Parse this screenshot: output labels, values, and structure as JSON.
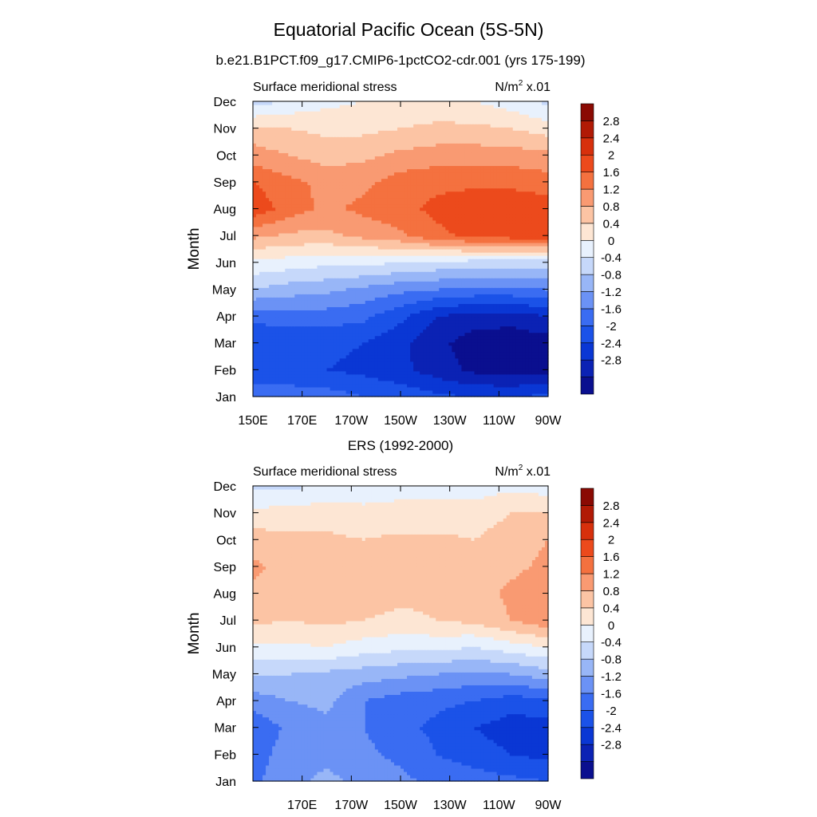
{
  "title": "Equatorial Pacific Ocean (5S-5N)",
  "colors": {
    "levels": [
      -2.8,
      -2.4,
      -2.0,
      -1.6,
      -1.2,
      -0.8,
      -0.4,
      0.0,
      0.4,
      0.8,
      1.2,
      1.6,
      2.0,
      2.4,
      2.8
    ],
    "palette": [
      "#0a0f8f",
      "#0b22b4",
      "#0a37d4",
      "#1b52e8",
      "#3a6cf2",
      "#6b92f5",
      "#98b6f7",
      "#c6d8fa",
      "#e8f1fd",
      "#fde6d4",
      "#fcc4a4",
      "#f99a72",
      "#f4713f",
      "#ec4a1c",
      "#d7300c",
      "#b11a05",
      "#8a0a03"
    ]
  },
  "chart_data": [
    {
      "type": "heatmap",
      "subtitle": "b.e21.B1PCT.f09_g17.CMIP6-1pctCO2-cdr.001 (yrs 175-199)",
      "left_label": "Surface meridional stress",
      "units_prefix": "N/m",
      "units_sup": "2",
      "units_suffix": " x.01",
      "ylabel": "Month",
      "xlabel": "",
      "xlim": [
        150,
        270
      ],
      "x_ticks": [
        {
          "value": 150,
          "label": "150E"
        },
        {
          "value": 170,
          "label": "170E"
        },
        {
          "value": 190,
          "label": "170W"
        },
        {
          "value": 210,
          "label": "150W"
        },
        {
          "value": 230,
          "label": "130W"
        },
        {
          "value": 250,
          "label": "110W"
        },
        {
          "value": 270,
          "label": "90W"
        }
      ],
      "y_ticks": [
        "Jan",
        "Feb",
        "Mar",
        "Apr",
        "May",
        "Jun",
        "Jul",
        "Aug",
        "Sep",
        "Oct",
        "Nov",
        "Dec"
      ],
      "colorbar_labels": [
        "2.8",
        "2.4",
        "2",
        "1.6",
        "1.2",
        "0.8",
        "0.4",
        "0",
        "-0.4",
        "-0.8",
        "-1.2",
        "-1.6",
        "-2",
        "-2.4",
        "-2.8"
      ],
      "x": [
        150,
        165,
        180,
        195,
        210,
        225,
        240,
        255,
        270
      ],
      "months": [
        "Jan",
        "Feb",
        "Mar",
        "Apr",
        "May",
        "Jun",
        "Jul",
        "Aug",
        "Sep",
        "Oct",
        "Nov",
        "Dec"
      ],
      "values": [
        [
          -1.2,
          -1.3,
          -1.4,
          -1.6,
          -1.7,
          -1.9,
          -2.0,
          -2.0,
          -1.9
        ],
        [
          -2.0,
          -2.0,
          -2.0,
          -2.1,
          -2.3,
          -2.6,
          -2.9,
          -3.0,
          -2.9
        ],
        [
          -1.9,
          -1.9,
          -1.9,
          -2.0,
          -2.3,
          -2.7,
          -3.0,
          -3.1,
          -3.0
        ],
        [
          -1.5,
          -1.4,
          -1.4,
          -1.5,
          -1.9,
          -2.4,
          -2.6,
          -2.6,
          -2.4
        ],
        [
          -0.4,
          -0.6,
          -0.7,
          -0.9,
          -1.1,
          -1.2,
          -1.3,
          -1.3,
          -1.2
        ],
        [
          0.3,
          0.2,
          0.1,
          0.1,
          0.0,
          -0.1,
          -0.2,
          -0.2,
          -0.2
        ],
        [
          1.3,
          1.1,
          1.1,
          1.3,
          1.5,
          1.9,
          2.1,
          2.2,
          2.2
        ],
        [
          2.3,
          1.8,
          1.5,
          1.7,
          1.9,
          2.1,
          2.3,
          2.3,
          2.2
        ],
        [
          2.0,
          1.7,
          1.5,
          1.5,
          1.8,
          1.9,
          1.9,
          1.9,
          1.8
        ],
        [
          1.4,
          1.2,
          1.0,
          1.1,
          1.3,
          1.4,
          1.4,
          1.4,
          1.3
        ],
        [
          0.9,
          0.8,
          0.7,
          0.7,
          0.8,
          0.9,
          0.9,
          0.8,
          0.6
        ],
        [
          -0.2,
          0.1,
          0.3,
          0.4,
          0.5,
          0.5,
          0.4,
          0.2,
          -0.1
        ]
      ]
    },
    {
      "type": "heatmap",
      "subtitle": "ERS (1992-2000)",
      "left_label": "Surface meridional stress",
      "units_prefix": "N/m",
      "units_sup": "2",
      "units_suffix": " x.01",
      "ylabel": "Month",
      "xlabel": "",
      "xlim": [
        150,
        270
      ],
      "x_ticks": [
        {
          "value": 170,
          "label": "170E"
        },
        {
          "value": 190,
          "label": "170W"
        },
        {
          "value": 210,
          "label": "150W"
        },
        {
          "value": 230,
          "label": "130W"
        },
        {
          "value": 250,
          "label": "110W"
        },
        {
          "value": 270,
          "label": "90W"
        }
      ],
      "y_ticks": [
        "Jan",
        "Feb",
        "Mar",
        "Apr",
        "May",
        "Jun",
        "Jul",
        "Aug",
        "Sep",
        "Oct",
        "Nov",
        "Dec"
      ],
      "colorbar_labels": [
        "2.8",
        "2.4",
        "2",
        "1.6",
        "1.2",
        "0.8",
        "0.4",
        "0",
        "-0.4",
        "-0.8",
        "-1.2",
        "-1.6",
        "-2",
        "-2.4",
        "-2.8"
      ],
      "x": [
        150,
        165,
        180,
        195,
        210,
        225,
        240,
        255,
        270
      ],
      "months": [
        "Jan",
        "Feb",
        "Mar",
        "Apr",
        "May",
        "Jun",
        "Jul",
        "Aug",
        "Sep",
        "Oct",
        "Nov",
        "Dec"
      ],
      "values": [
        [
          -1.3,
          -0.9,
          -0.7,
          -0.9,
          -1.1,
          -1.3,
          -1.4,
          -1.5,
          -1.6
        ],
        [
          -1.4,
          -1.0,
          -0.9,
          -1.1,
          -1.3,
          -1.6,
          -1.8,
          -2.0,
          -2.1
        ],
        [
          -1.5,
          -1.1,
          -0.9,
          -1.2,
          -1.5,
          -1.7,
          -2.0,
          -2.2,
          -2.2
        ],
        [
          -1.0,
          -0.8,
          -0.7,
          -1.2,
          -1.4,
          -1.5,
          -1.6,
          -1.8,
          -1.7
        ],
        [
          -0.4,
          -0.4,
          -0.5,
          -0.6,
          -0.7,
          -0.8,
          -0.9,
          -0.8,
          -0.6
        ],
        [
          0.3,
          0.3,
          0.4,
          0.2,
          0.1,
          0.1,
          0.0,
          0.2,
          0.4
        ],
        [
          0.9,
          0.8,
          0.9,
          0.8,
          0.7,
          0.8,
          0.9,
          1.2,
          1.5
        ],
        [
          1.1,
          1.0,
          1.0,
          1.0,
          0.9,
          0.9,
          1.0,
          1.3,
          1.5
        ],
        [
          1.3,
          1.0,
          1.1,
          1.0,
          0.9,
          1.0,
          1.0,
          1.1,
          1.3
        ],
        [
          1.0,
          0.9,
          0.9,
          0.8,
          0.9,
          0.9,
          0.8,
          1.0,
          1.2
        ],
        [
          0.5,
          0.6,
          0.6,
          0.5,
          0.5,
          0.5,
          0.6,
          0.8,
          0.8
        ],
        [
          -0.1,
          -0.1,
          0.1,
          0.2,
          0.3,
          0.3,
          0.2,
          0.3,
          0.2
        ]
      ]
    }
  ]
}
